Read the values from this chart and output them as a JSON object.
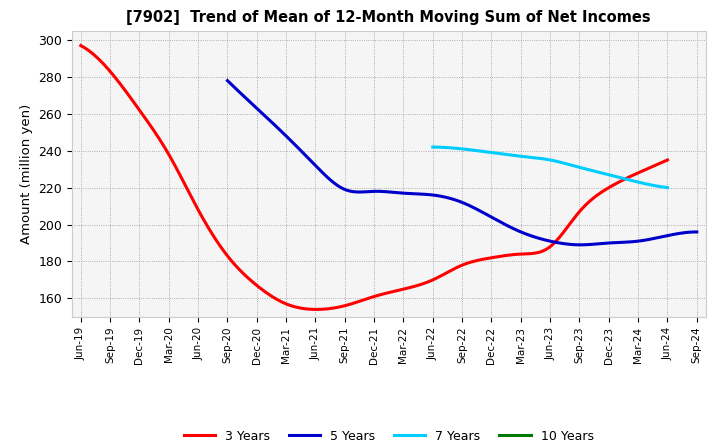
{
  "title": "[7902]  Trend of Mean of 12-Month Moving Sum of Net Incomes",
  "ylabel": "Amount (million yen)",
  "ylim": [
    150,
    305
  ],
  "yticks": [
    160,
    180,
    200,
    220,
    240,
    260,
    280,
    300
  ],
  "background_color": "#ffffff",
  "plot_bg_color": "#f0f0f0",
  "grid_color": "#aaaaaa",
  "x_labels": [
    "Jun-19",
    "Sep-19",
    "Dec-19",
    "Mar-20",
    "Jun-20",
    "Sep-20",
    "Dec-20",
    "Mar-21",
    "Jun-21",
    "Sep-21",
    "Dec-21",
    "Mar-22",
    "Jun-22",
    "Sep-22",
    "Dec-22",
    "Mar-23",
    "Jun-23",
    "Sep-23",
    "Dec-23",
    "Mar-24",
    "Jun-24",
    "Sep-24"
  ],
  "series": {
    "3 Years": {
      "color": "#ff0000",
      "linewidth": 2.2,
      "data": [
        297,
        283,
        262,
        238,
        208,
        183,
        167,
        157,
        154,
        156,
        161,
        165,
        170,
        178,
        182,
        184,
        188,
        207,
        220,
        228,
        235,
        null
      ]
    },
    "5 Years": {
      "color": "#0000cc",
      "linewidth": 2.2,
      "data": [
        null,
        null,
        null,
        null,
        null,
        278,
        263,
        248,
        232,
        219,
        218,
        217,
        216,
        212,
        204,
        196,
        191,
        189,
        190,
        191,
        194,
        196
      ]
    },
    "7 Years": {
      "color": "#00ccff",
      "linewidth": 2.2,
      "data": [
        null,
        null,
        null,
        null,
        null,
        null,
        null,
        null,
        null,
        null,
        null,
        null,
        242,
        241,
        239,
        237,
        235,
        231,
        227,
        223,
        220,
        null
      ]
    },
    "10 Years": {
      "color": "#007700",
      "linewidth": 2.2,
      "data": [
        null,
        null,
        null,
        null,
        null,
        null,
        null,
        null,
        null,
        null,
        null,
        null,
        null,
        null,
        null,
        null,
        null,
        null,
        null,
        null,
        null,
        null
      ]
    }
  },
  "legend_labels": [
    "3 Years",
    "5 Years",
    "7 Years",
    "10 Years"
  ],
  "legend_colors": [
    "#ff0000",
    "#0000cc",
    "#00ccff",
    "#007700"
  ]
}
